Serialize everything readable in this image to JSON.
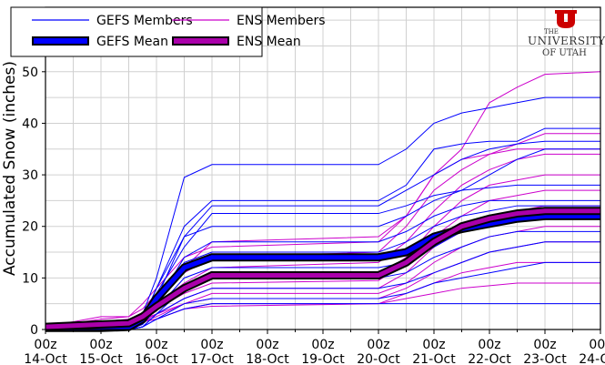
{
  "chart_data": {
    "type": "line",
    "title": "",
    "xlabel": "",
    "ylabel": "Accumulated Snow (inches)",
    "ylim": [
      0,
      62.5
    ],
    "xlim": [
      0,
      10
    ],
    "yticks": [
      0,
      10,
      20,
      30,
      40,
      50,
      60
    ],
    "xtick_labels": [
      [
        "00z",
        "14-Oct"
      ],
      [
        "00z",
        "15-Oct"
      ],
      [
        "00z",
        "16-Oct"
      ],
      [
        "00z",
        "17-Oct"
      ],
      [
        "00z",
        "18-Oct"
      ],
      [
        "00z",
        "19-Oct"
      ],
      [
        "00z",
        "20-Oct"
      ],
      [
        "00z",
        "21-Oct"
      ],
      [
        "00z",
        "22-Oct"
      ],
      [
        "00z",
        "23-Oct"
      ],
      [
        "00z",
        "24-Oct"
      ]
    ],
    "grid": true,
    "legend_position": "top-left",
    "legend": [
      {
        "label": "GEFS Members",
        "color": "#0000ff",
        "style": "thin"
      },
      {
        "label": "ENS Members",
        "color": "#cc00cc",
        "style": "thin"
      },
      {
        "label": "GEFS Mean",
        "color": "#0000ff",
        "style": "thick"
      },
      {
        "label": "ENS Mean",
        "color": "#aa00aa",
        "style": "thick"
      }
    ],
    "x_days": [
      0,
      1,
      1.5,
      1.75,
      2,
      2.5,
      3,
      6,
      6.5,
      7,
      7.5,
      8,
      8.5,
      9,
      10
    ],
    "gefs_members": [
      [
        0,
        0,
        0.5,
        3,
        10,
        29.5,
        32,
        32,
        35,
        40,
        42,
        43,
        44,
        45,
        45
      ],
      [
        0,
        0,
        0.2,
        2,
        8,
        20,
        25,
        25,
        28,
        35,
        36,
        36.5,
        36.5,
        39,
        39
      ],
      [
        0,
        0,
        0,
        1,
        6,
        18,
        24,
        24,
        27,
        30,
        33,
        35,
        36,
        36.5,
        36.5
      ],
      [
        0,
        0,
        0.5,
        2,
        7,
        16,
        22.5,
        22.5,
        24,
        26,
        27,
        27.5,
        28,
        28,
        28
      ],
      [
        0,
        0,
        0,
        1,
        5,
        14,
        17,
        17,
        19,
        22,
        24,
        25,
        25,
        25,
        25
      ],
      [
        0,
        0,
        0.3,
        1.5,
        6,
        13,
        15,
        15,
        17,
        20,
        22,
        23,
        24,
        24,
        24
      ],
      [
        0,
        0,
        0,
        1,
        4,
        10,
        12,
        12,
        13,
        16,
        19,
        20,
        21,
        22,
        22
      ],
      [
        0,
        0,
        0,
        0.5,
        3,
        8,
        10,
        10,
        11,
        14,
        16,
        18,
        19,
        19,
        19
      ],
      [
        0,
        0,
        0,
        0.5,
        3,
        6,
        8,
        8,
        9,
        11,
        13,
        15,
        16,
        17,
        17
      ],
      [
        0,
        0,
        0,
        0.5,
        2,
        5,
        6,
        6,
        7,
        9,
        10,
        11,
        12,
        13,
        13
      ],
      [
        0,
        0,
        0,
        0.5,
        2,
        4,
        5,
        5,
        5,
        5,
        5,
        5,
        5,
        5,
        5
      ],
      [
        0,
        0,
        0.5,
        2,
        8,
        18,
        20,
        20,
        22,
        25,
        27,
        30,
        33,
        35,
        35
      ]
    ],
    "ens_members": [
      [
        0.5,
        1,
        1.5,
        3,
        6,
        12,
        17,
        18,
        22,
        30,
        35,
        44,
        47,
        49.5,
        50
      ],
      [
        0.5,
        2,
        2.5,
        4,
        7,
        11,
        14,
        15,
        20,
        27,
        31,
        34,
        36,
        38,
        38
      ],
      [
        0.5,
        1.5,
        2,
        3,
        5,
        9,
        12,
        13,
        17,
        23,
        28,
        31,
        33,
        34,
        34
      ],
      [
        0.5,
        1,
        1.5,
        2.5,
        4,
        8,
        10,
        10.5,
        14,
        20,
        25,
        28,
        29,
        30,
        30
      ],
      [
        0.5,
        1,
        1,
        2,
        4,
        7,
        9,
        9.5,
        13,
        18,
        22,
        25,
        26,
        27,
        27
      ],
      [
        0.5,
        1,
        1,
        2,
        3,
        6,
        8,
        8,
        11,
        16,
        19,
        21,
        23,
        24,
        24
      ],
      [
        0.5,
        1,
        1,
        1.5,
        3,
        5,
        7,
        7,
        9,
        13,
        16,
        18,
        19,
        20,
        20
      ],
      [
        0.5,
        1,
        1,
        1.5,
        2.5,
        5,
        6,
        6,
        8,
        11,
        13,
        15,
        16,
        17,
        17
      ],
      [
        0.5,
        1,
        1,
        1.5,
        2,
        4,
        5,
        5,
        7,
        9,
        11,
        12,
        13,
        13,
        13
      ],
      [
        0.5,
        1,
        1,
        1.5,
        2,
        4,
        4.5,
        5,
        6,
        7,
        8,
        8.5,
        9,
        9,
        9
      ],
      [
        0.5,
        2.5,
        2.5,
        5,
        8,
        14,
        16,
        17,
        22,
        30,
        33,
        34,
        35,
        35,
        35
      ]
    ],
    "gefs_mean": [
      0.3,
      0.3,
      0.5,
      2,
      6,
      12,
      14,
      14,
      15,
      18,
      19.5,
      20.5,
      21.5,
      22,
      22
    ],
    "ens_mean": [
      0.5,
      1,
      1.2,
      2.5,
      4.5,
      8,
      10.5,
      10.5,
      13,
      17,
      20,
      21.5,
      22.5,
      23,
      23
    ]
  },
  "logo": {
    "text": "THE UNIVERSITY OF UTAH",
    "color": "#cc0000"
  }
}
